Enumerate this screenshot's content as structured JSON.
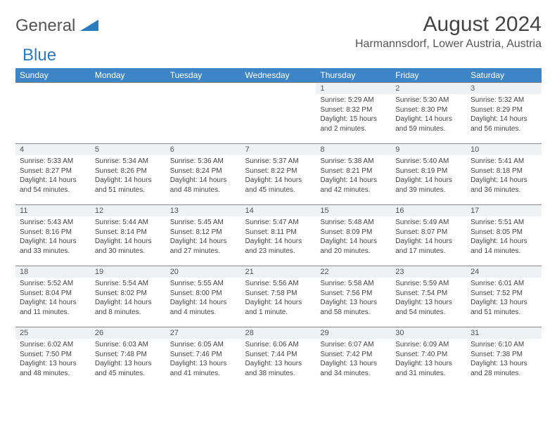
{
  "logo": {
    "word1": "General",
    "word2": "Blue"
  },
  "title": "August 2024",
  "location": "Harmannsdorf, Lower Austria, Austria",
  "colors": {
    "header_bg": "#3d85c6",
    "header_text": "#ffffff",
    "daynum_bg": "#eef2f5",
    "border": "#888888",
    "logo_gray": "#555555",
    "logo_blue": "#2b7bbf"
  },
  "day_headers": [
    "Sunday",
    "Monday",
    "Tuesday",
    "Wednesday",
    "Thursday",
    "Friday",
    "Saturday"
  ],
  "weeks": [
    [
      null,
      null,
      null,
      null,
      {
        "n": "1",
        "sr": "5:29 AM",
        "ss": "8:32 PM",
        "dl": "15 hours and 2 minutes."
      },
      {
        "n": "2",
        "sr": "5:30 AM",
        "ss": "8:30 PM",
        "dl": "14 hours and 59 minutes."
      },
      {
        "n": "3",
        "sr": "5:32 AM",
        "ss": "8:29 PM",
        "dl": "14 hours and 56 minutes."
      }
    ],
    [
      {
        "n": "4",
        "sr": "5:33 AM",
        "ss": "8:27 PM",
        "dl": "14 hours and 54 minutes."
      },
      {
        "n": "5",
        "sr": "5:34 AM",
        "ss": "8:26 PM",
        "dl": "14 hours and 51 minutes."
      },
      {
        "n": "6",
        "sr": "5:36 AM",
        "ss": "8:24 PM",
        "dl": "14 hours and 48 minutes."
      },
      {
        "n": "7",
        "sr": "5:37 AM",
        "ss": "8:22 PM",
        "dl": "14 hours and 45 minutes."
      },
      {
        "n": "8",
        "sr": "5:38 AM",
        "ss": "8:21 PM",
        "dl": "14 hours and 42 minutes."
      },
      {
        "n": "9",
        "sr": "5:40 AM",
        "ss": "8:19 PM",
        "dl": "14 hours and 39 minutes."
      },
      {
        "n": "10",
        "sr": "5:41 AM",
        "ss": "8:18 PM",
        "dl": "14 hours and 36 minutes."
      }
    ],
    [
      {
        "n": "11",
        "sr": "5:43 AM",
        "ss": "8:16 PM",
        "dl": "14 hours and 33 minutes."
      },
      {
        "n": "12",
        "sr": "5:44 AM",
        "ss": "8:14 PM",
        "dl": "14 hours and 30 minutes."
      },
      {
        "n": "13",
        "sr": "5:45 AM",
        "ss": "8:12 PM",
        "dl": "14 hours and 27 minutes."
      },
      {
        "n": "14",
        "sr": "5:47 AM",
        "ss": "8:11 PM",
        "dl": "14 hours and 23 minutes."
      },
      {
        "n": "15",
        "sr": "5:48 AM",
        "ss": "8:09 PM",
        "dl": "14 hours and 20 minutes."
      },
      {
        "n": "16",
        "sr": "5:49 AM",
        "ss": "8:07 PM",
        "dl": "14 hours and 17 minutes."
      },
      {
        "n": "17",
        "sr": "5:51 AM",
        "ss": "8:05 PM",
        "dl": "14 hours and 14 minutes."
      }
    ],
    [
      {
        "n": "18",
        "sr": "5:52 AM",
        "ss": "8:04 PM",
        "dl": "14 hours and 11 minutes."
      },
      {
        "n": "19",
        "sr": "5:54 AM",
        "ss": "8:02 PM",
        "dl": "14 hours and 8 minutes."
      },
      {
        "n": "20",
        "sr": "5:55 AM",
        "ss": "8:00 PM",
        "dl": "14 hours and 4 minutes."
      },
      {
        "n": "21",
        "sr": "5:56 AM",
        "ss": "7:58 PM",
        "dl": "14 hours and 1 minute."
      },
      {
        "n": "22",
        "sr": "5:58 AM",
        "ss": "7:56 PM",
        "dl": "13 hours and 58 minutes."
      },
      {
        "n": "23",
        "sr": "5:59 AM",
        "ss": "7:54 PM",
        "dl": "13 hours and 54 minutes."
      },
      {
        "n": "24",
        "sr": "6:01 AM",
        "ss": "7:52 PM",
        "dl": "13 hours and 51 minutes."
      }
    ],
    [
      {
        "n": "25",
        "sr": "6:02 AM",
        "ss": "7:50 PM",
        "dl": "13 hours and 48 minutes."
      },
      {
        "n": "26",
        "sr": "6:03 AM",
        "ss": "7:48 PM",
        "dl": "13 hours and 45 minutes."
      },
      {
        "n": "27",
        "sr": "6:05 AM",
        "ss": "7:46 PM",
        "dl": "13 hours and 41 minutes."
      },
      {
        "n": "28",
        "sr": "6:06 AM",
        "ss": "7:44 PM",
        "dl": "13 hours and 38 minutes."
      },
      {
        "n": "29",
        "sr": "6:07 AM",
        "ss": "7:42 PM",
        "dl": "13 hours and 34 minutes."
      },
      {
        "n": "30",
        "sr": "6:09 AM",
        "ss": "7:40 PM",
        "dl": "13 hours and 31 minutes."
      },
      {
        "n": "31",
        "sr": "6:10 AM",
        "ss": "7:38 PM",
        "dl": "13 hours and 28 minutes."
      }
    ]
  ],
  "labels": {
    "sunrise": "Sunrise:",
    "sunset": "Sunset:",
    "daylight": "Daylight:"
  }
}
